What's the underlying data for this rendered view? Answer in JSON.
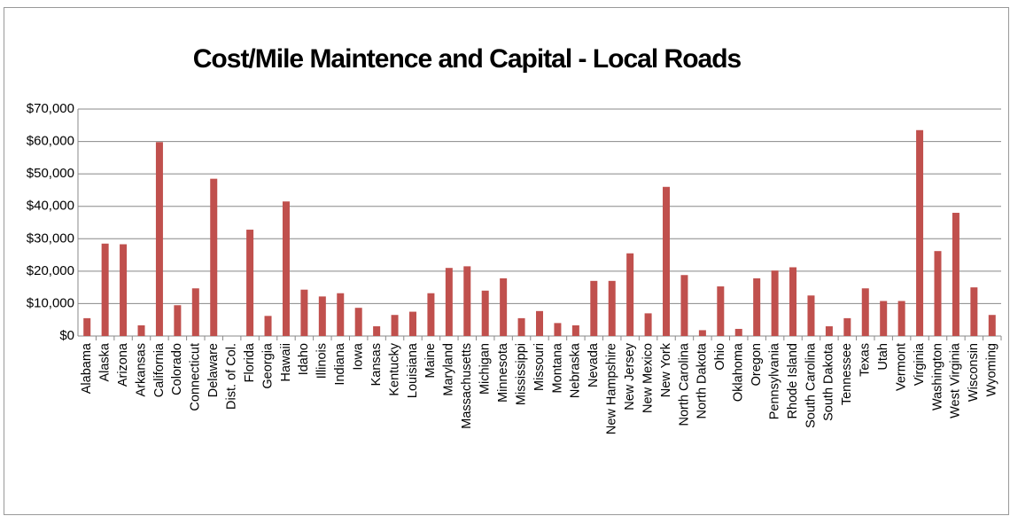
{
  "chart_data": {
    "type": "bar",
    "title": "Cost/Mile Maintence and Capital - Local Roads",
    "categories": [
      "Alabama",
      "Alaska",
      "Arizona",
      "Arkansas",
      "California",
      "Colorado",
      "Connecticut",
      "Delaware",
      "Dist. of Col.",
      "Florida",
      "Georgia",
      "Hawaii",
      "Idaho",
      "Illinois",
      "Indiana",
      "Iowa",
      "Kansas",
      "Kentucky",
      "Louisiana",
      "Maine",
      "Maryland",
      "Massachusetts",
      "Michigan",
      "Minnesota",
      "Mississippi",
      "Missouri",
      "Montana",
      "Nebraska",
      "Nevada",
      "New Hampshire",
      "New Jersey",
      "New Mexico",
      "New York",
      "North Carolina",
      "North Dakota",
      "Ohio",
      "Oklahoma",
      "Oregon",
      "Pennsylvania",
      "Rhode Island",
      "South Carolina",
      "South Dakota",
      "Tennessee",
      "Texas",
      "Utah",
      "Vermont",
      "Virginia",
      "Washington",
      "West Virginia",
      "Wisconsin",
      "Wyoming"
    ],
    "values": [
      5500,
      28500,
      28300,
      3300,
      59800,
      9500,
      14700,
      48500,
      0,
      32800,
      6200,
      41500,
      14300,
      12200,
      13200,
      8700,
      3000,
      6500,
      7500,
      13200,
      21000,
      21500,
      14000,
      17800,
      5500,
      7700,
      4000,
      3300,
      17000,
      17000,
      25500,
      7000,
      46000,
      18800,
      1800,
      15300,
      2200,
      17800,
      20200,
      21200,
      12500,
      3000,
      5500,
      14700,
      10800,
      10800,
      63500,
      26200,
      38000,
      15000,
      6500
    ],
    "color": "#c0504d",
    "ylim": [
      0,
      70000
    ],
    "yticks": [
      {
        "value": 0,
        "label": "$0"
      },
      {
        "value": 10000,
        "label": "$10,000"
      },
      {
        "value": 20000,
        "label": "$20,000"
      },
      {
        "value": 30000,
        "label": "$30,000"
      },
      {
        "value": 40000,
        "label": "$40,000"
      },
      {
        "value": 50000,
        "label": "$50,000"
      },
      {
        "value": 60000,
        "label": "$60,000"
      },
      {
        "value": 70000,
        "label": "$70,000"
      }
    ],
    "grid": true
  }
}
